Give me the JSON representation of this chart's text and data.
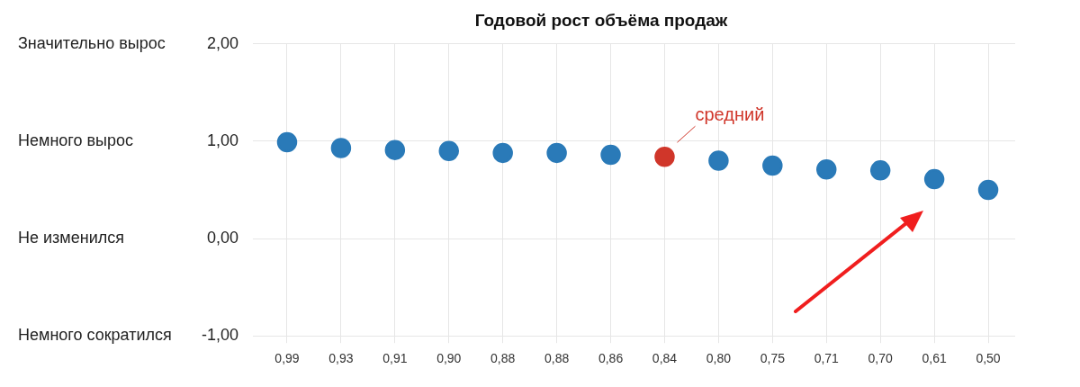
{
  "chart_data": {
    "type": "scatter",
    "title": "Годовой рост объёма продаж",
    "categories": [
      "0,99",
      "0,93",
      "0,91",
      "0,90",
      "0,88",
      "0,88",
      "0,86",
      "0,84",
      "0,80",
      "0,75",
      "0,71",
      "0,70",
      "0,61",
      "0,50"
    ],
    "values": [
      0.99,
      0.93,
      0.91,
      0.9,
      0.88,
      0.88,
      0.86,
      0.84,
      0.8,
      0.75,
      0.71,
      0.7,
      0.61,
      0.5
    ],
    "colors": [
      "#2a7ab8",
      "#2a7ab8",
      "#2a7ab8",
      "#2a7ab8",
      "#2a7ab8",
      "#2a7ab8",
      "#2a7ab8",
      "#d0362a",
      "#2a7ab8",
      "#2a7ab8",
      "#2a7ab8",
      "#2a7ab8",
      "#2a7ab8",
      "#2a7ab8"
    ],
    "ylim": [
      -1,
      2
    ],
    "yticks": [
      {
        "value": -1,
        "label": "-1,00"
      },
      {
        "value": 0,
        "label": "0,00"
      },
      {
        "value": 1,
        "label": "1,00"
      },
      {
        "value": 2,
        "label": "2,00"
      }
    ],
    "annotations": [
      "Значительно вырос",
      "Немного вырос",
      "Не изменился",
      "Немного сократился",
      {
        "text": "средний",
        "x": "0,84",
        "y": 0.84
      }
    ],
    "grid": true,
    "marker": "circle",
    "legend": false
  }
}
